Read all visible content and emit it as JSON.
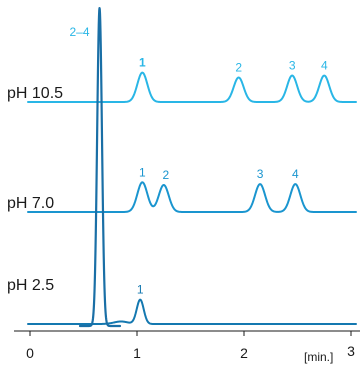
{
  "chart_data": {
    "type": "line",
    "xlabel": "[min.]",
    "xlim": [
      0,
      3
    ],
    "x_ticks": [
      "0",
      "1",
      "2",
      "3"
    ],
    "grid": false,
    "series": [
      {
        "name": "pH 10.5",
        "color": "#29b6e6",
        "peaks": [
          {
            "label": "2–4",
            "t": 0.65,
            "height": 1.0
          },
          {
            "label": "1",
            "t": 1.05,
            "height": 0.3
          },
          {
            "label": "2",
            "t": 1.95,
            "height": 0.25
          },
          {
            "label": "3",
            "t": 2.45,
            "height": 0.27
          },
          {
            "label": "4",
            "t": 2.75,
            "height": 0.27
          }
        ]
      },
      {
        "name": "pH 7.0",
        "color": "#1a95cf",
        "peaks": [
          {
            "label": "1",
            "t": 1.05,
            "height": 0.33
          },
          {
            "label": "2",
            "t": 1.25,
            "height": 0.3
          },
          {
            "label": "3",
            "t": 2.15,
            "height": 0.31
          },
          {
            "label": "4",
            "t": 2.48,
            "height": 0.31
          }
        ]
      },
      {
        "name": "pH 2.5",
        "color": "#1478b0",
        "peaks": [
          {
            "label": "1",
            "t": 1.03,
            "height": 0.27
          }
        ]
      }
    ]
  }
}
